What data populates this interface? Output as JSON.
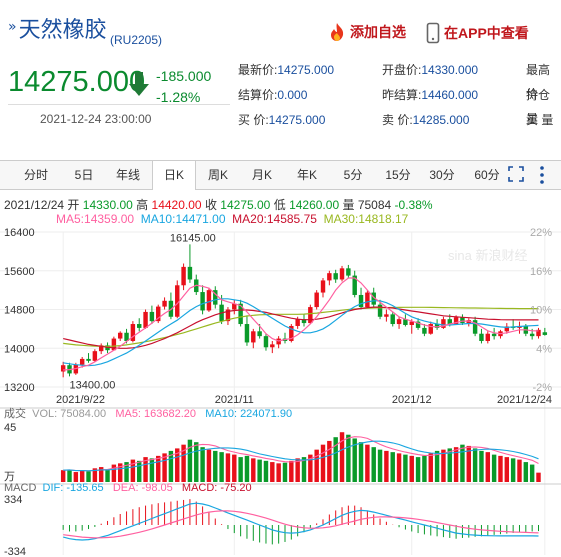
{
  "header": {
    "title": "天然橡胶",
    "code": "(RU2205)",
    "add_watch": "添加自选",
    "view_app": "在APP中查看"
  },
  "quote": {
    "price": "14275.000",
    "change": "-185.000",
    "change_pct": "-1.28%",
    "datetime": "2021-12-24 23:00:00",
    "fields": [
      {
        "label": "最新价:",
        "value": "14275.000"
      },
      {
        "label": "开盘价:",
        "value": "14330.000"
      },
      {
        "label": "最高价",
        "value": ""
      },
      {
        "label": "结算价:",
        "value": "0.000"
      },
      {
        "label": "昨结算:",
        "value": "14460.000"
      },
      {
        "label": "持仓量",
        "value": ""
      },
      {
        "label": "买  价:",
        "value": "14275.000"
      },
      {
        "label": "卖  价:",
        "value": "14285.000"
      },
      {
        "label": "买  量",
        "value": ""
      }
    ]
  },
  "tabs": [
    "分时",
    "5日",
    "年线",
    "日K",
    "周K",
    "月K",
    "年K",
    "5分",
    "15分",
    "30分",
    "60分"
  ],
  "active_tab": "日K",
  "colors": {
    "up": "#e8101a",
    "down": "#0a9a2a",
    "link": "#1a4f9e",
    "ma5": "#ff60a0",
    "ma10": "#19a6e0",
    "ma20": "#c8102e",
    "ma30": "#99b820"
  },
  "ohlc_info": {
    "date": "2021/12/24",
    "open_label": "开",
    "open": "14330.00",
    "high_label": "高",
    "high": "14420.00",
    "close_label": "收",
    "close": "14275.00",
    "low_label": "低",
    "low": "14260.00",
    "vol_label": "量",
    "vol": "75084",
    "chg": "-0.38%"
  },
  "ma_info": [
    {
      "label": "MA5:",
      "value": "14359.00"
    },
    {
      "label": "MA10:",
      "value": "14471.00"
    },
    {
      "label": "MA20:",
      "value": "14585.75"
    },
    {
      "label": "MA30:",
      "value": "14818.17"
    }
  ],
  "vol_info": {
    "title": "成交",
    "vol": "VOL: 75084.00",
    "ma5": "MA5: 163682.20",
    "ma10": "MA10: 224071.90"
  },
  "macd_info": {
    "title": "MACD",
    "dif": "DIF: -135.65",
    "dea": "DEA: -98.05",
    "macd": "MACD: -75.20"
  },
  "watermark": "sina 新浪财经",
  "chart_data": {
    "type": "candlestick",
    "title": "天然橡胶 (RU2205) 日K",
    "price_axis": {
      "ticks": [
        "16400",
        "15600",
        "14800",
        "14000",
        "13200"
      ],
      "ylim": [
        13200,
        16400
      ]
    },
    "pct_axis": {
      "ticks": [
        "22%",
        "16%",
        "10%",
        "4%",
        "-2%"
      ]
    },
    "x_labels": [
      "2021/9/22",
      "2021/11",
      "2021/12",
      "2021/12/24"
    ],
    "x_label_index": [
      0,
      27,
      55,
      76
    ],
    "annotations": [
      {
        "label": "16145.00",
        "index": 20
      },
      {
        "label": "13400.00",
        "index": 1
      }
    ],
    "candles": [
      [
        13520,
        13720,
        13400,
        13650
      ],
      [
        13650,
        13700,
        13420,
        13480
      ],
      [
        13480,
        13700,
        13450,
        13660
      ],
      [
        13660,
        13820,
        13600,
        13780
      ],
      [
        13780,
        13900,
        13700,
        13740
      ],
      [
        13740,
        13980,
        13720,
        13940
      ],
      [
        13940,
        14100,
        13880,
        14060
      ],
      [
        14060,
        14120,
        13900,
        13960
      ],
      [
        13960,
        14240,
        13950,
        14200
      ],
      [
        14200,
        14350,
        14150,
        14320
      ],
      [
        14320,
        14400,
        14100,
        14150
      ],
      [
        14150,
        14560,
        14120,
        14500
      ],
      [
        14500,
        14620,
        14350,
        14420
      ],
      [
        14420,
        14800,
        14400,
        14750
      ],
      [
        14750,
        14880,
        14500,
        14560
      ],
      [
        14560,
        14900,
        14520,
        14860
      ],
      [
        14860,
        15050,
        14800,
        14980
      ],
      [
        14980,
        15150,
        14600,
        14650
      ],
      [
        14650,
        15400,
        14620,
        15300
      ],
      [
        15300,
        15750,
        15200,
        15680
      ],
      [
        15680,
        16145,
        15350,
        15420
      ],
      [
        15420,
        15520,
        15100,
        15160
      ],
      [
        15160,
        15300,
        14700,
        14780
      ],
      [
        14780,
        15250,
        14750,
        15200
      ],
      [
        15200,
        15280,
        14820,
        14900
      ],
      [
        14900,
        15100,
        14500,
        14560
      ],
      [
        14560,
        14850,
        14480,
        14800
      ],
      [
        14800,
        15000,
        14700,
        14920
      ],
      [
        14920,
        15000,
        14450,
        14500
      ],
      [
        14500,
        14680,
        14050,
        14120
      ],
      [
        14120,
        14400,
        14000,
        14350
      ],
      [
        14350,
        14500,
        14200,
        14250
      ],
      [
        14250,
        14300,
        13950,
        14020
      ],
      [
        14020,
        14150,
        13900,
        14080
      ],
      [
        14080,
        14250,
        14000,
        14200
      ],
      [
        14200,
        14320,
        14100,
        14150
      ],
      [
        14150,
        14500,
        14120,
        14460
      ],
      [
        14460,
        14650,
        14400,
        14600
      ],
      [
        14600,
        14700,
        14450,
        14520
      ],
      [
        14520,
        14900,
        14500,
        14850
      ],
      [
        14850,
        15200,
        14800,
        15150
      ],
      [
        15150,
        15450,
        15050,
        15400
      ],
      [
        15400,
        15600,
        15300,
        15550
      ],
      [
        15550,
        15620,
        15350,
        15420
      ],
      [
        15420,
        15700,
        15380,
        15650
      ],
      [
        15650,
        15720,
        15450,
        15500
      ],
      [
        15500,
        15600,
        15050,
        15100
      ],
      [
        15100,
        15250,
        14800,
        14850
      ],
      [
        14850,
        15200,
        14820,
        15150
      ],
      [
        15150,
        15250,
        14850,
        14900
      ],
      [
        14900,
        15000,
        14600,
        14650
      ],
      [
        14650,
        14800,
        14550,
        14700
      ],
      [
        14700,
        14750,
        14450,
        14500
      ],
      [
        14500,
        14650,
        14400,
        14600
      ],
      [
        14600,
        14700,
        14450,
        14480
      ],
      [
        14480,
        14600,
        14300,
        14550
      ],
      [
        14550,
        14620,
        14380,
        14420
      ],
      [
        14420,
        14500,
        14250,
        14300
      ],
      [
        14300,
        14550,
        14280,
        14500
      ],
      [
        14500,
        14600,
        14380,
        14420
      ],
      [
        14420,
        14650,
        14400,
        14600
      ],
      [
        14600,
        14700,
        14450,
        14500
      ],
      [
        14500,
        14680,
        14480,
        14640
      ],
      [
        14640,
        14700,
        14480,
        14520
      ],
      [
        14520,
        14620,
        14450,
        14580
      ],
      [
        14580,
        14650,
        14250,
        14300
      ],
      [
        14300,
        14400,
        14100,
        14150
      ],
      [
        14150,
        14350,
        14100,
        14300
      ],
      [
        14300,
        14420,
        14180,
        14250
      ],
      [
        14250,
        14380,
        14200,
        14350
      ],
      [
        14350,
        14520,
        14300,
        14450
      ],
      [
        14450,
        14600,
        14380,
        14420
      ],
      [
        14420,
        14550,
        14300,
        14460
      ],
      [
        14460,
        14500,
        14250,
        14300
      ],
      [
        14300,
        14400,
        14180,
        14250
      ],
      [
        14250,
        14420,
        14200,
        14380
      ],
      [
        14330,
        14420,
        14260,
        14275
      ]
    ],
    "ma5": [
      13550,
      13560,
      13580,
      13620,
      13650,
      13720,
      13800,
      13880,
      13960,
      14040,
      14140,
      14240,
      14330,
      14420,
      14520,
      14620,
      14720,
      14800,
      14920,
      15080,
      15240,
      15300,
      15280,
      15240,
      15120,
      15000,
      14960,
      14920,
      14880,
      14750,
      14600,
      14460,
      14300,
      14200,
      14150,
      14180,
      14200,
      14280,
      14380,
      14500,
      14650,
      14820,
      15000,
      15200,
      15350,
      15450,
      15450,
      15350,
      15200,
      15050,
      14950,
      14850,
      14750,
      14650,
      14600,
      14560,
      14520,
      14480,
      14450,
      14440,
      14460,
      14500,
      14530,
      14560,
      14560,
      14520,
      14440,
      14360,
      14320,
      14300,
      14320,
      14350,
      14380,
      14380,
      14360,
      14359
    ],
    "ma10": [
      13700,
      13680,
      13660,
      13650,
      13640,
      13650,
      13680,
      13720,
      13780,
      13840,
      13900,
      13980,
      14060,
      14150,
      14240,
      14330,
      14420,
      14500,
      14580,
      14680,
      14780,
      14860,
      14920,
      14960,
      15000,
      15020,
      15020,
      15000,
      14980,
      14930,
      14860,
      14780,
      14700,
      14620,
      14540,
      14460,
      14400,
      14350,
      14320,
      14320,
      14350,
      14400,
      14480,
      14580,
      14680,
      14780,
      14860,
      14920,
      14960,
      14980,
      14980,
      14940,
      14880,
      14800,
      14720,
      14650,
      14600,
      14560,
      14530,
      14500,
      14480,
      14480,
      14490,
      14500,
      14510,
      14510,
      14500,
      14480,
      14460,
      14440,
      14430,
      14440,
      14450,
      14460,
      14465,
      14471
    ],
    "ma20": [
      14200,
      14170,
      14140,
      14110,
      14080,
      14060,
      14040,
      14020,
      14010,
      14000,
      14000,
      14010,
      14030,
      14060,
      14100,
      14150,
      14200,
      14260,
      14320,
      14390,
      14460,
      14530,
      14590,
      14640,
      14690,
      14730,
      14760,
      14780,
      14790,
      14790,
      14780,
      14760,
      14740,
      14710,
      14680,
      14650,
      14620,
      14600,
      14590,
      14590,
      14600,
      14620,
      14650,
      14690,
      14730,
      14770,
      14800,
      14820,
      14840,
      14850,
      14850,
      14840,
      14830,
      14810,
      14790,
      14770,
      14750,
      14730,
      14710,
      14690,
      14670,
      14660,
      14650,
      14640,
      14630,
      14620,
      14610,
      14600,
      14595,
      14590,
      14588,
      14587,
      14586,
      14586,
      14586,
      14586
    ],
    "ma30": [
      14100,
      14085,
      14070,
      14060,
      14050,
      14045,
      14040,
      14040,
      14045,
      14055,
      14070,
      14090,
      14110,
      14135,
      14160,
      14190,
      14220,
      14250,
      14285,
      14320,
      14360,
      14400,
      14440,
      14480,
      14520,
      14555,
      14590,
      14620,
      14645,
      14665,
      14680,
      14690,
      14695,
      14700,
      14700,
      14700,
      14700,
      14700,
      14705,
      14715,
      14725,
      14740,
      14755,
      14770,
      14785,
      14800,
      14810,
      14820,
      14825,
      14830,
      14835,
      14840,
      14842,
      14844,
      14845,
      14846,
      14846,
      14845,
      14844,
      14842,
      14840,
      14838,
      14836,
      14834,
      14832,
      14830,
      14828,
      14826,
      14824,
      14822,
      14821,
      14820,
      14819,
      14819,
      14818,
      14818
    ],
    "volume": [
      95000,
      100000,
      80000,
      90000,
      85000,
      110000,
      120000,
      100000,
      140000,
      150000,
      160000,
      180000,
      170000,
      200000,
      190000,
      210000,
      230000,
      250000,
      270000,
      300000,
      340000,
      320000,
      280000,
      260000,
      250000,
      240000,
      230000,
      220000,
      200000,
      210000,
      190000,
      180000,
      170000,
      160000,
      150000,
      155000,
      170000,
      190000,
      200000,
      220000,
      260000,
      300000,
      330000,
      360000,
      400000,
      380000,
      350000,
      320000,
      300000,
      280000,
      260000,
      250000,
      240000,
      230000,
      220000,
      210000,
      200000,
      210000,
      230000,
      250000,
      260000,
      270000,
      280000,
      300000,
      290000,
      270000,
      250000,
      240000,
      220000,
      210000,
      200000,
      190000,
      180000,
      160000,
      140000,
      75084
    ],
    "volume_axis": {
      "ticks": [
        "45",
        "万"
      ]
    },
    "macd": {
      "ylim": [
        -334,
        334
      ],
      "ticks": [
        "334",
        "-334"
      ],
      "dif": [
        -150,
        -170,
        -180,
        -185,
        -180,
        -170,
        -150,
        -130,
        -100,
        -70,
        -40,
        -10,
        20,
        50,
        80,
        110,
        140,
        170,
        200,
        230,
        260,
        270,
        260,
        240,
        210,
        180,
        150,
        120,
        90,
        60,
        30,
        0,
        -30,
        -60,
        -80,
        -95,
        -100,
        -95,
        -80,
        -60,
        -30,
        0,
        40,
        80,
        120,
        150,
        170,
        180,
        175,
        160,
        140,
        120,
        100,
        80,
        60,
        40,
        20,
        0,
        -20,
        -40,
        -60,
        -80,
        -100,
        -110,
        -120,
        -125,
        -130,
        -132,
        -134,
        -135,
        -135,
        -135,
        -135,
        -135,
        -135,
        -135.65
      ],
      "dea": [
        -120,
        -130,
        -140,
        -150,
        -155,
        -158,
        -158,
        -155,
        -148,
        -138,
        -124,
        -108,
        -90,
        -70,
        -48,
        -25,
        0,
        25,
        50,
        75,
        100,
        125,
        145,
        160,
        170,
        175,
        175,
        170,
        160,
        145,
        128,
        108,
        85,
        60,
        35,
        10,
        -10,
        -25,
        -35,
        -40,
        -40,
        -35,
        -25,
        -10,
        10,
        30,
        50,
        70,
        85,
        95,
        100,
        100,
        98,
        94,
        88,
        80,
        70,
        58,
        45,
        30,
        15,
        0,
        -15,
        -30,
        -42,
        -52,
        -60,
        -67,
        -73,
        -78,
        -82,
        -86,
        -89,
        -92,
        -95,
        -98.05
      ],
      "bar": [
        -60,
        -80,
        -80,
        -70,
        -50,
        -24,
        16,
        50,
        96,
        136,
        168,
        196,
        220,
        240,
        256,
        270,
        280,
        290,
        300,
        310,
        320,
        290,
        230,
        160,
        80,
        10,
        -50,
        -100,
        -140,
        -170,
        -196,
        -216,
        -230,
        -240,
        -230,
        -210,
        -180,
        -140,
        -90,
        -40,
        20,
        70,
        130,
        180,
        220,
        240,
        240,
        220,
        180,
        130,
        80,
        40,
        4,
        -28,
        -56,
        -80,
        -100,
        -116,
        -130,
        -140,
        -150,
        -160,
        -170,
        -160,
        -156,
        -146,
        -140,
        -130,
        -122,
        -114,
        -106,
        -98,
        -92,
        -86,
        -80,
        -75.2
      ]
    }
  }
}
